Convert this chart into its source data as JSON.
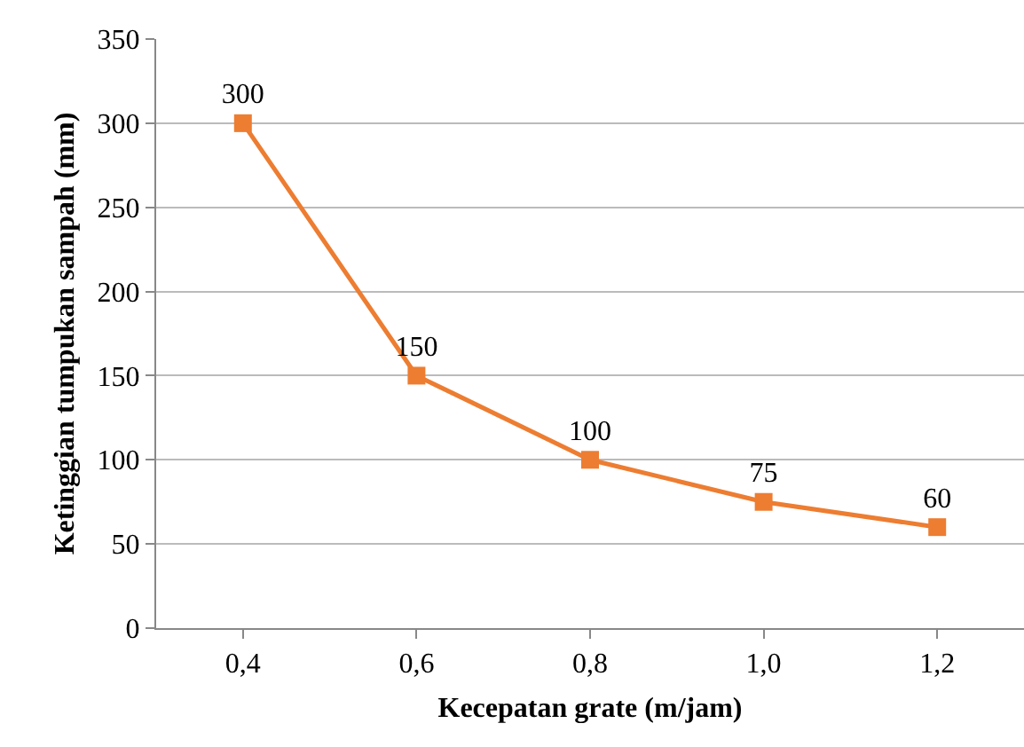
{
  "chart_data": {
    "type": "line",
    "xlabel": "Kecepatan grate (m/jam)",
    "ylabel": "Ketinggian tumpukan sampah (mm)",
    "categories": [
      "0,4",
      "0,6",
      "0,8",
      "1,0",
      "1,2"
    ],
    "series": [
      {
        "color": "#ed7d31",
        "values": [
          300,
          150,
          100,
          75,
          60
        ]
      }
    ],
    "ylim": [
      0,
      350
    ],
    "yticks": [
      0,
      50,
      100,
      150,
      200,
      250,
      300,
      350
    ],
    "grid": "y",
    "legend": false,
    "marker": "square",
    "line_style": "solid",
    "data_labels": true
  }
}
